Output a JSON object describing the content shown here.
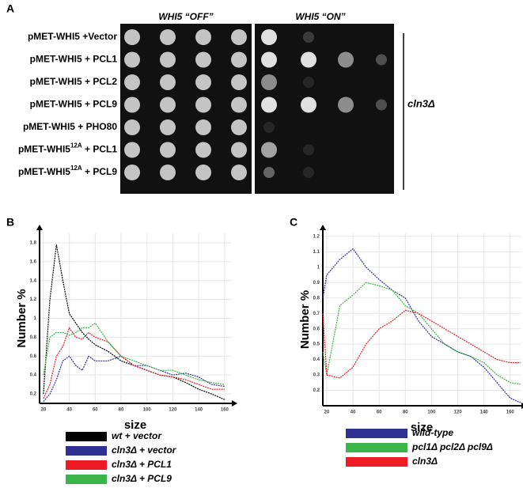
{
  "panel_a": {
    "panel": "A",
    "header_off": "WHI5 “OFF”",
    "header_on": "WHI5 “ON”",
    "strain": "cln3Δ",
    "rows": [
      {
        "label": "pMET-WHI5 +Vector"
      },
      {
        "label": "pMET-WHI5 + PCL1"
      },
      {
        "label": "pMET-WHI5 + PCL2"
      },
      {
        "label": "pMET-WHI5 + PCL9"
      },
      {
        "label": "pMET-WHI5 + PHO80"
      },
      {
        "label": "pMET-WHI5",
        "sup": "12A",
        "rest": " + PCL1"
      },
      {
        "label": "pMET-WHI5",
        "sup": "12A",
        "rest": " + PCL9"
      }
    ]
  },
  "chart_data": [
    {
      "type": "line",
      "panel": "B",
      "xlabel": "size",
      "ylabel": "Number %",
      "xlim": [
        17,
        165
      ],
      "ylim": [
        0.1,
        1.9
      ],
      "xticks": [
        20,
        40,
        60,
        80,
        100,
        120,
        140,
        160
      ],
      "yticks": [
        0.2,
        0.4,
        0.6,
        0.8,
        1,
        1.2,
        1.4,
        1.6,
        1.8
      ],
      "grid": true,
      "x": [
        20,
        25,
        30,
        35,
        40,
        45,
        50,
        55,
        60,
        70,
        80,
        90,
        100,
        110,
        120,
        130,
        140,
        150,
        160
      ],
      "series": [
        {
          "name": "wt + vector",
          "color": "#000000",
          "values": [
            0.2,
            1.2,
            1.78,
            1.4,
            1.05,
            0.95,
            0.85,
            0.78,
            0.72,
            0.65,
            0.55,
            0.5,
            0.45,
            0.4,
            0.38,
            0.32,
            0.25,
            0.2,
            0.14
          ]
        },
        {
          "name": "cln3Δ + vector",
          "color": "#2e3192",
          "values": [
            0.12,
            0.2,
            0.35,
            0.55,
            0.6,
            0.5,
            0.45,
            0.6,
            0.55,
            0.55,
            0.6,
            0.5,
            0.5,
            0.45,
            0.4,
            0.42,
            0.38,
            0.3,
            0.28
          ]
        },
        {
          "name": "cln3Δ + PCL1",
          "color": "#ed1c24",
          "values": [
            0.15,
            0.3,
            0.6,
            0.7,
            0.9,
            0.8,
            0.78,
            0.85,
            0.8,
            0.75,
            0.6,
            0.5,
            0.45,
            0.4,
            0.38,
            0.35,
            0.3,
            0.25,
            0.25
          ]
        },
        {
          "name": "cln3Δ + PCL9",
          "color": "#39b54a",
          "values": [
            0.4,
            0.8,
            0.85,
            0.85,
            0.82,
            0.85,
            0.9,
            0.9,
            0.95,
            0.75,
            0.6,
            0.55,
            0.5,
            0.45,
            0.45,
            0.4,
            0.35,
            0.32,
            0.3
          ]
        }
      ]
    },
    {
      "type": "line",
      "panel": "C",
      "xlabel": "size",
      "ylabel": "Number %",
      "xlim": [
        17,
        168
      ],
      "ylim": [
        0.1,
        1.22
      ],
      "xticks": [
        20,
        40,
        60,
        80,
        100,
        120,
        140,
        160
      ],
      "yticks": [
        0.2,
        0.3,
        0.4,
        0.5,
        0.6,
        0.7,
        0.8,
        0.9,
        1,
        1.1,
        1.2
      ],
      "grid": true,
      "x": [
        17,
        20,
        30,
        40,
        50,
        60,
        70,
        80,
        90,
        100,
        110,
        120,
        130,
        140,
        150,
        160,
        168
      ],
      "series": [
        {
          "name": "wild-type",
          "color": "#2e3192",
          "values": [
            0.8,
            0.95,
            1.05,
            1.12,
            1.0,
            0.92,
            0.85,
            0.8,
            0.65,
            0.55,
            0.5,
            0.45,
            0.42,
            0.35,
            0.25,
            0.15,
            0.12
          ]
        },
        {
          "name": "pcl1Δ pcl2Δ pcl9Δ",
          "color": "#39b54a",
          "values": [
            0.45,
            0.3,
            0.75,
            0.82,
            0.9,
            0.88,
            0.85,
            0.75,
            0.7,
            0.6,
            0.5,
            0.45,
            0.42,
            0.38,
            0.3,
            0.25,
            0.24
          ]
        },
        {
          "name": "cln3Δ",
          "color": "#ed1c24",
          "values": [
            0.7,
            0.3,
            0.28,
            0.35,
            0.5,
            0.6,
            0.65,
            0.72,
            0.7,
            0.65,
            0.6,
            0.55,
            0.5,
            0.45,
            0.4,
            0.38,
            0.38
          ]
        }
      ]
    }
  ]
}
